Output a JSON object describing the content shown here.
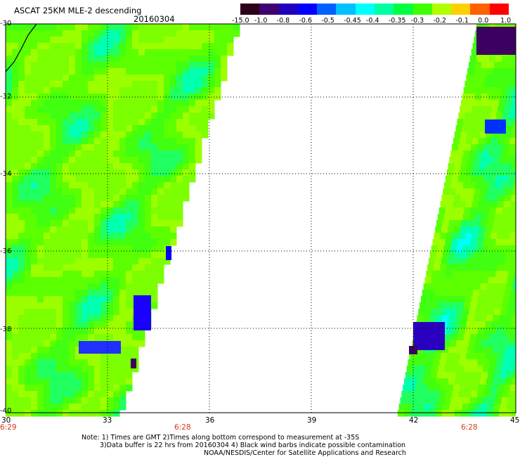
{
  "header": {
    "title": "ASCAT 25KM MLE-2 descending",
    "date": "20160304"
  },
  "colorbar": {
    "labels": [
      "-15.0",
      "-1.0",
      "-0.8",
      "-0.6",
      "-0.5",
      "-0.45",
      "-0.4",
      "-0.35",
      "-0.3",
      "-0.2",
      "-0.1",
      "0.0",
      "1.0"
    ],
    "colors": [
      "#2b0018",
      "#400070",
      "#2000c0",
      "#0000ff",
      "#0060ff",
      "#00c0ff",
      "#00ffff",
      "#00ffa0",
      "#00ff40",
      "#40ff00",
      "#b0ff00",
      "#ffd000",
      "#ff6000",
      "#ff0000"
    ]
  },
  "map": {
    "lat_labels": [
      "-30",
      "-32",
      "-34",
      "-36",
      "-38",
      "-40"
    ],
    "lon_labels": [
      "30",
      "33",
      "36",
      "39",
      "42",
      "45"
    ],
    "times": [
      "6:29",
      "6:28",
      "6:28"
    ]
  },
  "footer": {
    "note1": "Note: 1) Times are GMT 2)Times along bottom correspond to measurement at -35S",
    "note2": "3)Data buffer is 22 hrs from 20160304 4) Black wind barbs indicate possible contamination",
    "note3": "NOAA/NESDIS/Center for Satellite Applications and Research"
  }
}
